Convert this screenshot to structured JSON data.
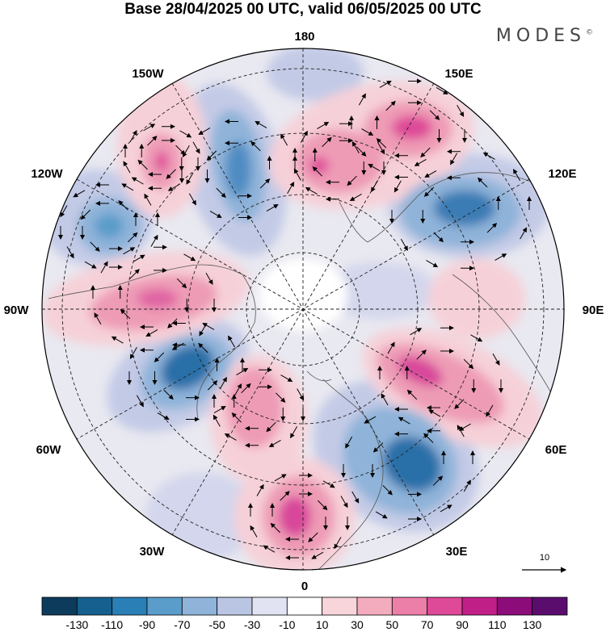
{
  "title": "Base 28/04/2025 00 UTC, valid 06/05/2025 00 UTC",
  "brand": "MODES",
  "brand_mark": "©",
  "longitude_labels": {
    "top": "180",
    "top_right": "150E",
    "right_upper": "120E",
    "right": "90E",
    "right_lower": "60E",
    "bottom_right": "30E",
    "bottom": "0",
    "bottom_left": "30W",
    "left_lower": "60W",
    "left": "90W",
    "left_upper": "120W",
    "top_left": "150W"
  },
  "reference_vector_label": "10",
  "colorbar": {
    "ticks": [
      "-130",
      "-110",
      "-90",
      "-70",
      "-50",
      "-30",
      "-10",
      "10",
      "30",
      "50",
      "70",
      "90",
      "110",
      "130"
    ],
    "colors": [
      "#0d3b5c",
      "#15608f",
      "#2a7fb6",
      "#5a9cca",
      "#8fb3d9",
      "#b9c5e3",
      "#e1e3f2",
      "#ffffff",
      "#f8d5da",
      "#f3acbd",
      "#ec7fa8",
      "#de4a98",
      "#c11f88",
      "#8c0d7a",
      "#5b0d6e"
    ]
  },
  "anomaly_colors": {
    "neg_strong": "#2a6fa8",
    "neg_mid": "#6f9ccc",
    "neg_weak": "#c3cae6",
    "pos_weak": "#f6d0d8",
    "pos_mid": "#ee9bb6",
    "pos_strong": "#d8479a"
  }
}
